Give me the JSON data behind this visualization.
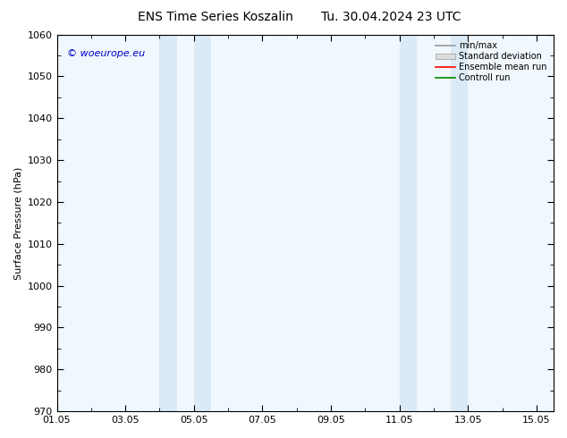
{
  "title_left": "ENS Time Series Koszalin",
  "title_right": "Tu. 30.04.2024 23 UTC",
  "ylabel": "Surface Pressure (hPa)",
  "ylim": [
    970,
    1060
  ],
  "yticks": [
    970,
    980,
    990,
    1000,
    1010,
    1020,
    1030,
    1040,
    1050,
    1060
  ],
  "xlim_start": 0.0,
  "xlim_end": 14.5,
  "xtick_positions": [
    0,
    2,
    4,
    6,
    8,
    10,
    12,
    14
  ],
  "xtick_labels": [
    "01.05",
    "03.05",
    "05.05",
    "07.05",
    "09.05",
    "11.05",
    "13.05",
    "15.05"
  ],
  "shaded_regions": [
    {
      "xmin": 3.0,
      "xmax": 3.5
    },
    {
      "xmin": 4.0,
      "xmax": 4.5
    },
    {
      "xmin": 10.0,
      "xmax": 10.5
    },
    {
      "xmin": 11.5,
      "xmax": 12.0
    }
  ],
  "shade_color": "#daeaf7",
  "plot_bg_color": "#f0f7fd",
  "background_color": "#ffffff",
  "watermark": "© woeurope.eu",
  "legend_items": [
    {
      "label": "min/max",
      "color": "#999999",
      "style": "line"
    },
    {
      "label": "Standard deviation",
      "color": "#cccccc",
      "style": "rect"
    },
    {
      "label": "Ensemble mean run",
      "color": "#ff0000",
      "style": "line"
    },
    {
      "label": "Controll run",
      "color": "#008800",
      "style": "line"
    }
  ],
  "title_fontsize": 10,
  "axis_fontsize": 8,
  "tick_fontsize": 8,
  "watermark_color": "#0000cc"
}
